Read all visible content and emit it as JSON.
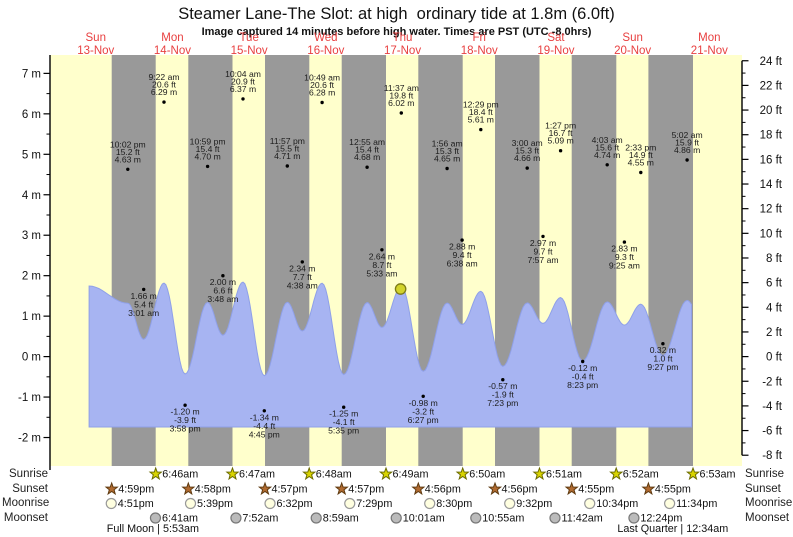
{
  "header": {
    "title": "Steamer Lane-The Slot: at high  ordinary tide at 1.8m (6.0ft)",
    "subtitle": "Image captured 14 minutes before high water. Times are PST (UTC -8.0hrs)"
  },
  "days": [
    {
      "name": "Sun",
      "date": "13-Nov"
    },
    {
      "name": "Mon",
      "date": "14-Nov"
    },
    {
      "name": "Tue",
      "date": "15-Nov"
    },
    {
      "name": "Wed",
      "date": "16-Nov"
    },
    {
      "name": "Thu",
      "date": "17-Nov"
    },
    {
      "name": "Fri",
      "date": "18-Nov"
    },
    {
      "name": "Sat",
      "date": "19-Nov"
    },
    {
      "name": "Sun",
      "date": "20-Nov"
    },
    {
      "name": "Mon",
      "date": "21-Nov"
    }
  ],
  "chart_data": {
    "type": "area",
    "title": "Tide height curve with high/low annotations",
    "x_axis": {
      "start_day": "13-Nov",
      "end_day": "21-Nov",
      "day_count": 9
    },
    "y_left": {
      "unit": "m",
      "ticks": [
        7,
        6,
        5,
        4,
        3,
        2,
        1,
        0,
        -1,
        -2
      ]
    },
    "y_right": {
      "unit": "ft",
      "ticks": [
        24,
        22,
        20,
        18,
        16,
        14,
        12,
        10,
        8,
        6,
        4,
        2,
        0,
        -2,
        -4,
        -6,
        -8
      ]
    },
    "tide_events": [
      {
        "day": 0,
        "time": "10:02 pm",
        "ft": "15.2",
        "m": "4.63",
        "type": "high"
      },
      {
        "day": 1,
        "time": "3:01 am",
        "ft": "5.4",
        "m": "1.66",
        "type": "low"
      },
      {
        "day": 1,
        "time": "9:22 am",
        "ft": "20.6",
        "m": "6.29",
        "type": "high"
      },
      {
        "day": 1,
        "time": "3:58 pm",
        "ft": "-3.9",
        "m": "-1.20",
        "type": "low"
      },
      {
        "day": 1,
        "time": "10:59 pm",
        "ft": "15.4",
        "m": "4.70",
        "type": "high"
      },
      {
        "day": 2,
        "time": "3:48 am",
        "ft": "6.6",
        "m": "2.00",
        "type": "low"
      },
      {
        "day": 2,
        "time": "10:04 am",
        "ft": "20.9",
        "m": "6.37",
        "type": "high"
      },
      {
        "day": 2,
        "time": "4:45 pm",
        "ft": "-4.4",
        "m": "-1.34",
        "type": "low"
      },
      {
        "day": 2,
        "time": "11:57 pm",
        "ft": "15.5",
        "m": "4.71",
        "type": "high"
      },
      {
        "day": 3,
        "time": "4:38 am",
        "ft": "7.7",
        "m": "2.34",
        "type": "low"
      },
      {
        "day": 3,
        "time": "10:49 am",
        "ft": "20.6",
        "m": "6.28",
        "type": "high"
      },
      {
        "day": 3,
        "time": "5:35 pm",
        "ft": "-4.1",
        "m": "-1.25",
        "type": "low"
      },
      {
        "day": 4,
        "time": "12:55 am",
        "ft": "15.4",
        "m": "4.68",
        "type": "high"
      },
      {
        "day": 4,
        "time": "5:33 am",
        "ft": "8.7",
        "m": "2.64",
        "type": "low"
      },
      {
        "day": 4,
        "time": "11:37 am",
        "ft": "19.8",
        "m": "6.02",
        "type": "high"
      },
      {
        "day": 4,
        "time": "6:27 pm",
        "ft": "-3.2",
        "m": "-0.98",
        "type": "low"
      },
      {
        "day": 5,
        "time": "1:56 am",
        "ft": "15.3",
        "m": "4.65",
        "type": "high"
      },
      {
        "day": 5,
        "time": "6:38 am",
        "ft": "9.4",
        "m": "2.88",
        "type": "low"
      },
      {
        "day": 5,
        "time": "12:29 pm",
        "ft": "18.4",
        "m": "5.61",
        "type": "high"
      },
      {
        "day": 5,
        "time": "7:23 pm",
        "ft": "-1.9",
        "m": "-0.57",
        "type": "low"
      },
      {
        "day": 6,
        "time": "3:00 am",
        "ft": "15.3",
        "m": "4.66",
        "type": "high"
      },
      {
        "day": 6,
        "time": "7:57 am",
        "ft": "9.7",
        "m": "2.97",
        "type": "low"
      },
      {
        "day": 6,
        "time": "1:27 pm",
        "ft": "16.7",
        "m": "5.09",
        "type": "high"
      },
      {
        "day": 6,
        "time": "8:23 pm",
        "ft": "-0.4",
        "m": "-0.12",
        "type": "low"
      },
      {
        "day": 7,
        "time": "4:03 am",
        "ft": "15.6",
        "m": "4.74",
        "type": "high"
      },
      {
        "day": 7,
        "time": "9:25 am",
        "ft": "9.3",
        "m": "2.83",
        "type": "low"
      },
      {
        "day": 7,
        "time": "2:33 pm",
        "ft": "14.9",
        "m": "4.55",
        "type": "high"
      },
      {
        "day": 7,
        "time": "9:27 pm",
        "ft": "1.0",
        "m": "0.32",
        "type": "low"
      },
      {
        "day": 8,
        "time": "5:02 am",
        "ft": "15.9",
        "m": "4.86",
        "type": "high"
      }
    ],
    "current_marker": {
      "day": 4,
      "time": "11:23 am",
      "note_source": "14 minutes before 11:37 am high water"
    },
    "colors": {
      "day_band": "#ffffcc",
      "night_band": "#999999",
      "tide_fill": "#a7b4f2",
      "tide_edge": "#8fa0e8",
      "marker_fill": "#d2d32b",
      "marker_edge": "#7d7c17",
      "day_label": "#e84040",
      "annotation": "#1c1c1c"
    }
  },
  "sun_moon": {
    "labels": {
      "sunrise": "Sunrise",
      "sunset": "Sunset",
      "moonrise": "Moonrise",
      "moonset": "Moonset"
    },
    "sunrise": [
      {
        "day": 1,
        "time": "6:46am"
      },
      {
        "day": 2,
        "time": "6:47am"
      },
      {
        "day": 3,
        "time": "6:48am"
      },
      {
        "day": 4,
        "time": "6:49am"
      },
      {
        "day": 5,
        "time": "6:50am"
      },
      {
        "day": 6,
        "time": "6:51am"
      },
      {
        "day": 7,
        "time": "6:52am"
      },
      {
        "day": 8,
        "time": "6:53am"
      }
    ],
    "sunset": [
      {
        "day": 0,
        "time": "4:59pm"
      },
      {
        "day": 1,
        "time": "4:58pm"
      },
      {
        "day": 2,
        "time": "4:57pm"
      },
      {
        "day": 3,
        "time": "4:57pm"
      },
      {
        "day": 4,
        "time": "4:56pm"
      },
      {
        "day": 5,
        "time": "4:56pm"
      },
      {
        "day": 6,
        "time": "4:55pm"
      },
      {
        "day": 7,
        "time": "4:55pm"
      }
    ],
    "moonrise": [
      {
        "day": 0,
        "time": "4:51pm"
      },
      {
        "day": 1,
        "time": "5:39pm"
      },
      {
        "day": 2,
        "time": "6:32pm"
      },
      {
        "day": 3,
        "time": "7:29pm"
      },
      {
        "day": 4,
        "time": "8:30pm"
      },
      {
        "day": 5,
        "time": "9:32pm"
      },
      {
        "day": 6,
        "time": "10:34pm"
      },
      {
        "day": 7,
        "time": "11:34pm"
      }
    ],
    "moonset": [
      {
        "day": 1,
        "time": "6:41am"
      },
      {
        "day": 2,
        "time": "7:52am"
      },
      {
        "day": 3,
        "time": "8:59am"
      },
      {
        "day": 4,
        "time": "10:01am"
      },
      {
        "day": 5,
        "time": "10:55am"
      },
      {
        "day": 6,
        "time": "11:42am"
      },
      {
        "day": 7,
        "time": "12:24pm"
      }
    ],
    "phases": [
      {
        "label": "Full Moon | 5:53am",
        "day": 1,
        "time": "5:53am"
      },
      {
        "label": "Last Quarter | 12:34am",
        "day": 8,
        "time": "12:34am"
      }
    ]
  }
}
